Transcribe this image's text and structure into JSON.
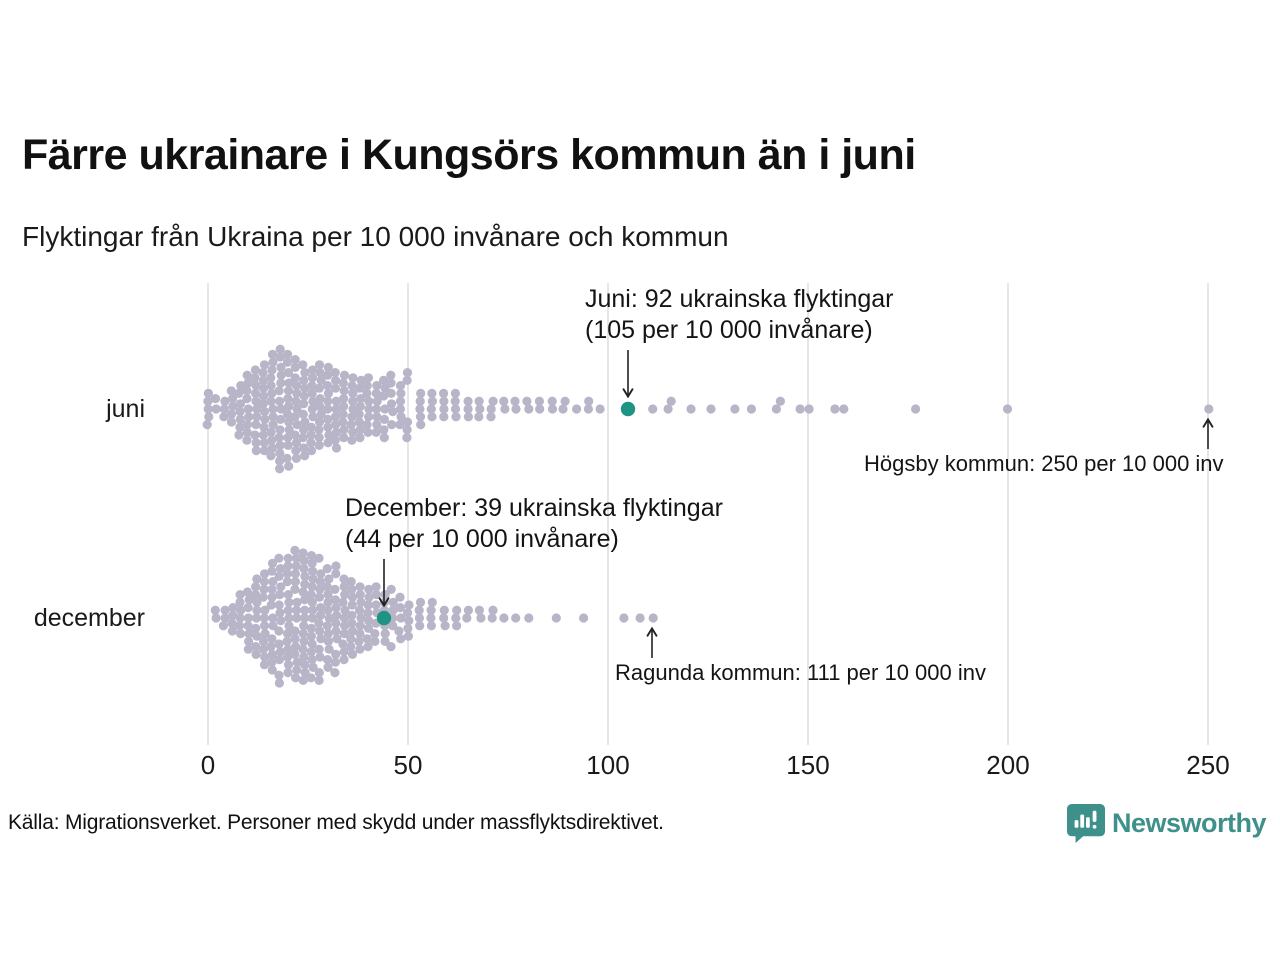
{
  "footer": {
    "source": "Källa: Migrationsverket. Personer med skydd under massflyktsdirektivet.",
    "brand": "Newsworthy"
  },
  "colors": {
    "accent_teal": "#1f9384",
    "brand_teal": "#3e908b",
    "dot_gray": "#b7b5c7",
    "gridline": "#d9d9d9",
    "arrow": "#222222",
    "text": "#1a1a1a"
  },
  "chart_data": {
    "type": "beeswarm",
    "title": "Färre ukrainare i Kungsörs kommun än i juni",
    "subtitle": "Flyktingar från Ukraina per 10 000 invånare och kommun",
    "xlabel": "",
    "x_ticks": [
      0,
      50,
      100,
      150,
      200,
      250
    ],
    "x_range": [
      0,
      260
    ],
    "grid": true,
    "rows": [
      {
        "label": "juni",
        "highlight": {
          "value": 105
        },
        "distribution": [
          [
            0,
            5
          ],
          [
            2,
            2
          ],
          [
            4,
            3
          ],
          [
            6,
            5
          ],
          [
            8,
            7
          ],
          [
            10,
            9
          ],
          [
            12,
            11
          ],
          [
            14,
            12
          ],
          [
            16,
            14
          ],
          [
            18,
            15
          ],
          [
            20,
            14
          ],
          [
            22,
            13
          ],
          [
            24,
            12
          ],
          [
            26,
            11
          ],
          [
            28,
            11
          ],
          [
            30,
            10
          ],
          [
            32,
            10
          ],
          [
            34,
            9
          ],
          [
            36,
            9
          ],
          [
            38,
            8
          ],
          [
            40,
            8
          ],
          [
            42,
            7
          ],
          [
            44,
            7
          ],
          [
            46,
            6
          ],
          [
            48,
            6
          ],
          [
            50,
            5
          ],
          [
            53,
            5
          ],
          [
            56,
            4
          ],
          [
            59,
            4
          ],
          [
            62,
            4
          ],
          [
            65,
            3
          ],
          [
            68,
            3
          ],
          [
            71,
            3
          ],
          [
            74,
            2
          ],
          [
            77,
            2
          ],
          [
            80,
            2
          ],
          [
            83,
            2
          ],
          [
            86,
            2
          ],
          [
            89,
            2
          ],
          [
            92,
            1
          ],
          [
            95,
            2
          ],
          [
            98,
            1
          ],
          [
            111,
            1
          ],
          [
            115,
            1
          ],
          [
            116,
            1
          ],
          [
            121,
            1
          ],
          [
            126,
            1
          ],
          [
            132,
            1
          ],
          [
            136,
            1
          ],
          [
            142,
            1
          ],
          [
            143,
            1
          ],
          [
            148,
            1
          ],
          [
            150,
            1
          ],
          [
            157,
            1
          ],
          [
            159,
            1
          ],
          [
            177,
            1
          ],
          [
            200,
            1
          ],
          [
            250,
            1
          ]
        ]
      },
      {
        "label": "december",
        "highlight": {
          "value": 44
        },
        "distribution": [
          [
            2,
            2
          ],
          [
            4,
            3
          ],
          [
            6,
            4
          ],
          [
            8,
            6
          ],
          [
            10,
            8
          ],
          [
            12,
            10
          ],
          [
            14,
            12
          ],
          [
            16,
            13
          ],
          [
            18,
            14
          ],
          [
            20,
            15
          ],
          [
            22,
            16
          ],
          [
            24,
            17
          ],
          [
            26,
            16
          ],
          [
            28,
            14
          ],
          [
            30,
            13
          ],
          [
            32,
            12
          ],
          [
            34,
            11
          ],
          [
            36,
            10
          ],
          [
            38,
            9
          ],
          [
            40,
            8
          ],
          [
            42,
            7
          ],
          [
            44,
            6
          ],
          [
            46,
            6
          ],
          [
            48,
            5
          ],
          [
            50,
            5
          ],
          [
            53,
            4
          ],
          [
            56,
            4
          ],
          [
            59,
            3
          ],
          [
            62,
            3
          ],
          [
            65,
            2
          ],
          [
            68,
            2
          ],
          [
            71,
            2
          ],
          [
            74,
            1
          ],
          [
            77,
            1
          ],
          [
            80,
            1
          ],
          [
            87,
            1
          ],
          [
            94,
            1
          ],
          [
            104,
            1
          ],
          [
            108,
            1
          ],
          [
            111,
            1
          ]
        ]
      }
    ],
    "annotations": [
      {
        "row": "juni",
        "value": 105,
        "direction": "down",
        "lines": [
          "Juni: 92 ukrainska flyktingar",
          "(105 per 10 000 invånare)"
        ]
      },
      {
        "row": "december",
        "value": 44,
        "direction": "down",
        "lines": [
          "December: 39 ukrainska flyktingar",
          "(44 per 10 000 invånare)"
        ]
      },
      {
        "row": "juni",
        "value": 250,
        "direction": "up",
        "text": "Högsby kommun: 250 per 10 000 inv"
      },
      {
        "row": "december",
        "value": 111,
        "direction": "up",
        "text": "Ragunda kommun: 111 per 10 000 inv"
      }
    ]
  }
}
